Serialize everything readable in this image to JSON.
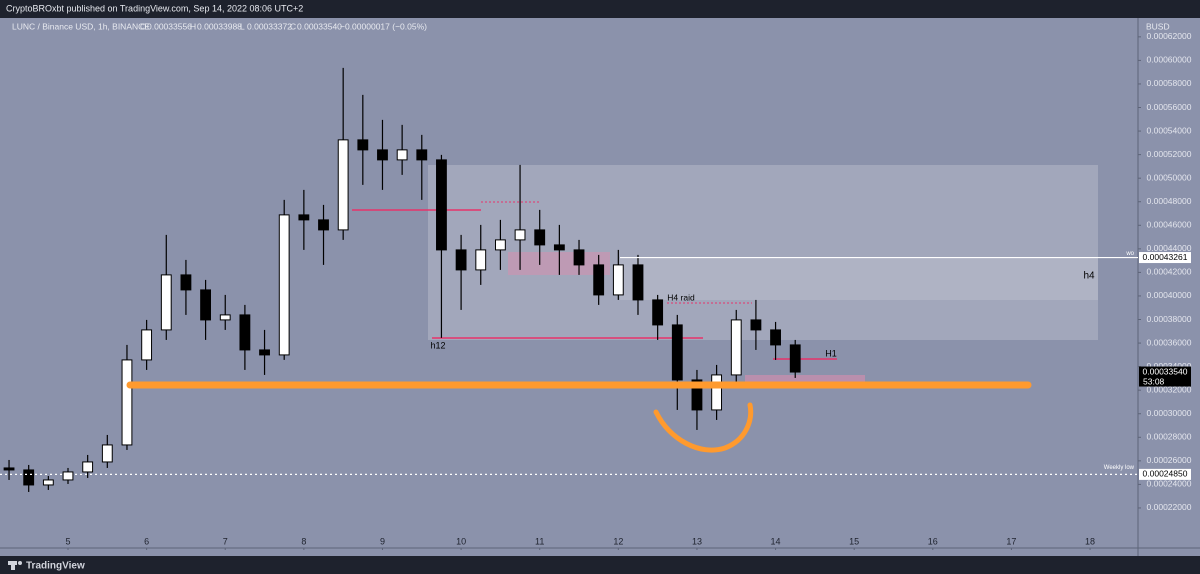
{
  "header": {
    "published": "CryptoBROxbt published on TradingView.com, Sep 14, 2022 08:06 UTC+2"
  },
  "footer": {
    "brand": "TradingView"
  },
  "chart_data": {
    "type": "candlestick",
    "symbol": "LUNC / Binance USD, 1h, BINANCE",
    "ohlc_keys": [
      "O",
      "H",
      "L",
      "C"
    ],
    "ohlc_values": [
      "0.00033556",
      "0.00033988",
      "0.00033372",
      "0.00033540"
    ],
    "change": "−0.00000017 (−0.05%)",
    "currency": "BUSD",
    "up_color": "#ffffff",
    "down_color": "#000000",
    "wick_color": "#000000",
    "x": [
      4.25,
      4.5,
      4.75,
      5,
      5.25,
      5.5,
      5.75,
      6,
      6.25,
      6.5,
      6.75,
      7,
      7.25,
      7.5,
      7.75,
      8,
      8.25,
      8.5,
      8.75,
      9,
      9.25,
      9.5,
      9.75,
      10,
      10.25,
      10.5,
      10.75,
      11,
      11.25,
      11.5,
      11.75,
      12,
      12.25,
      12.5,
      12.75,
      13,
      13.25,
      13.5,
      13.75,
      14,
      14.25
    ],
    "open": [
      0.00025397,
      0.00025227,
      0.00023953,
      0.00024378,
      0.00025057,
      0.00025906,
      0.0002735,
      0.00034569,
      0.00037117,
      0.00041788,
      0.00040514,
      0.00037966,
      0.00038391,
      0.00035418,
      0.00034994,
      0.00046883,
      0.00046459,
      0.00045609,
      0.00053253,
      0.00052403,
      0.00051554,
      0.00052403,
      0.00051554,
      0.00043911,
      0.00042212,
      0.00043911,
      0.0004476,
      0.00045609,
      0.00044335,
      0.00043911,
      0.00042637,
      0.00040089,
      0.00042637,
      0.00039664,
      0.00037541,
      0.0003287,
      0.00030323,
      0.00033295,
      0.00037966,
      0.00037117,
      0.00035843
    ],
    "high": [
      0.00026076,
      0.00025652,
      0.00024717,
      0.00025397,
      0.00026501,
      0.00028199,
      0.00035843,
      0.00037966,
      0.00045185,
      0.00043061,
      0.00041363,
      0.00040089,
      0.0003924,
      0.00037117,
      0.00048157,
      0.00049006,
      0.00047732,
      0.00059367,
      0.00057074,
      0.00054951,
      0.00054527,
      0.00053677,
      0.00051979,
      0.00045185,
      0.00046034,
      0.00046459,
      0.00051129,
      0.00047308,
      0.00046034,
      0.0004476,
      0.00043486,
      0.00043911,
      0.00043486,
      0.00040089,
      0.00038391,
      0.0003372,
      0.00034144,
      0.00038815,
      0.00039664,
      0.00037796,
      0.00036267
    ],
    "low": [
      0.00024378,
      0.00023359,
      0.00023529,
      0.00024038,
      0.00024548,
      0.00025397,
      0.00026926,
      0.0003372,
      0.00036267,
      0.00038391,
      0.00036267,
      0.00037117,
      0.0003372,
      0.00033295,
      0.00034569,
      0.00043911,
      0.00042637,
      0.0004476,
      0.00049431,
      0.00049006,
      0.0005028,
      0.00048157,
      0.00036437,
      0.00038815,
      0.00040938,
      0.00042212,
      0.00042212,
      0.00042637,
      0.00041788,
      0.00041788,
      0.0003924,
      0.00039664,
      0.00038391,
      0.00036267,
      0.00030323,
      0.00028624,
      0.00029473,
      0.00032446,
      0.00035418,
      0.00034569,
      0.0003304
    ],
    "close": [
      0.00025227,
      0.00023953,
      0.00024378,
      0.00025057,
      0.00025906,
      0.0002735,
      0.00034569,
      0.00037117,
      0.00041788,
      0.00040514,
      0.00037966,
      0.00038391,
      0.00035418,
      0.00034994,
      0.00046883,
      0.00046459,
      0.00045609,
      0.00053253,
      0.00052403,
      0.00051554,
      0.00052403,
      0.00051554,
      0.00043911,
      0.00042212,
      0.00043911,
      0.0004476,
      0.00045609,
      0.00044335,
      0.00043911,
      0.00042637,
      0.00040089,
      0.00042637,
      0.00039664,
      0.00037541,
      0.0003287,
      0.00030323,
      0.00033295,
      0.00037966,
      0.00037117,
      0.00035843,
      0.0003354
    ],
    "xlim": [
      4.135,
      18.61
    ],
    "xticks": [
      5,
      6,
      7,
      8,
      9,
      10,
      11,
      12,
      13,
      14,
      15,
      16,
      17,
      18
    ],
    "ylim": [
      0.000186,
      0.000636
    ],
    "yticks": [
      {
        "value": 0.00022,
        "label": "0.00022000"
      },
      {
        "value": 0.00024,
        "label": "0.00024000"
      },
      {
        "value": 0.00026,
        "label": "0.00026000"
      },
      {
        "value": 0.00028,
        "label": "0.00028000"
      },
      {
        "value": 0.0003,
        "label": "0.00030000"
      },
      {
        "value": 0.00032,
        "label": "0.00032000"
      },
      {
        "value": 0.00034,
        "label": "0.00034000"
      },
      {
        "value": 0.00036,
        "label": "0.00036000"
      },
      {
        "value": 0.00038,
        "label": "0.00038000"
      },
      {
        "value": 0.0004,
        "label": "0.00040000"
      },
      {
        "value": 0.00042,
        "label": "0.00042000"
      },
      {
        "value": 0.00044,
        "label": "0.00044000"
      },
      {
        "value": 0.00046,
        "label": "0.00046000"
      },
      {
        "value": 0.00048,
        "label": "0.00048000"
      },
      {
        "value": 0.0005,
        "label": "0.00050000"
      },
      {
        "value": 0.00052,
        "label": "0.00052000"
      },
      {
        "value": 0.00054,
        "label": "0.00054000"
      },
      {
        "value": 0.00056,
        "label": "0.00056000"
      },
      {
        "value": 0.00058,
        "label": "0.00058000"
      },
      {
        "value": 0.0006,
        "label": "0.00060000"
      },
      {
        "value": 0.00062,
        "label": "0.00062000"
      }
    ],
    "price_lines": [
      {
        "value": 0.00043261,
        "label": "0.00043261",
        "tag": "wo"
      },
      {
        "value": 0.0003354,
        "label": "0.00033540",
        "tag": "53:08"
      },
      {
        "value": 0.0002485,
        "label": "0.00024850",
        "tag": "Weekly low"
      }
    ],
    "annotations": [
      "h4",
      "H4 raid",
      "h12",
      "H1"
    ]
  }
}
